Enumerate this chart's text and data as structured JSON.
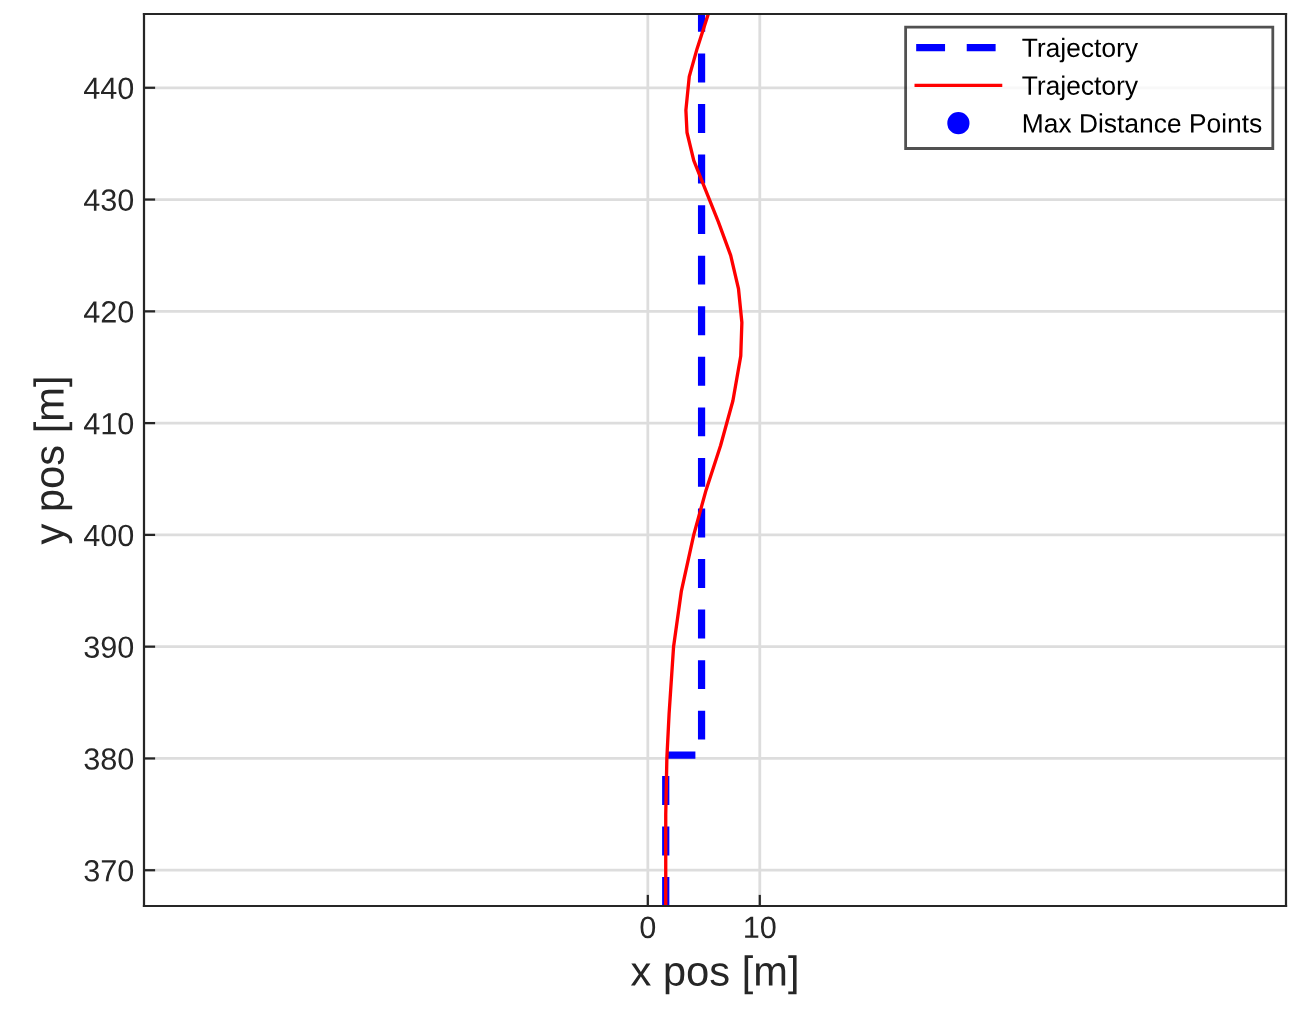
{
  "chart_data": {
    "type": "line",
    "xlabel": "x pos [m]",
    "ylabel": "y pos [m]",
    "xlim": [
      -45,
      57
    ],
    "ylim": [
      366.8,
      446.6
    ],
    "xticks": [
      0,
      10
    ],
    "yticks": [
      370,
      380,
      390,
      400,
      410,
      420,
      430,
      440
    ],
    "grid": true,
    "legend": "top right",
    "series": [
      {
        "name": "Trajectory",
        "color": "#0000ff",
        "line_style": "dashed",
        "x": [
          1.6,
          1.6,
          4.8,
          4.8
        ],
        "values": [
          366.8,
          380.3,
          380.3,
          446.6
        ]
      },
      {
        "name": "Trajectory",
        "color": "#ff0000",
        "line_style": "solid",
        "x": [
          1.6,
          1.6,
          1.7,
          1.9,
          2.3,
          3.0,
          4.1,
          5.2,
          6.5,
          7.6,
          8.3,
          8.4,
          8.1,
          7.4,
          6.3,
          5.1,
          4.1,
          3.5,
          3.4,
          3.7,
          4.4,
          5.4
        ],
        "values": [
          366.8,
          375,
          380,
          384,
          390,
          395,
          400,
          404,
          408,
          412,
          416,
          419,
          422,
          425,
          428,
          431,
          433.5,
          436,
          438,
          441,
          443.5,
          446.6
        ]
      },
      {
        "name": "Max Distance Points",
        "type": "scatter",
        "marker": "circle",
        "color": "#0000ff"
      }
    ]
  }
}
